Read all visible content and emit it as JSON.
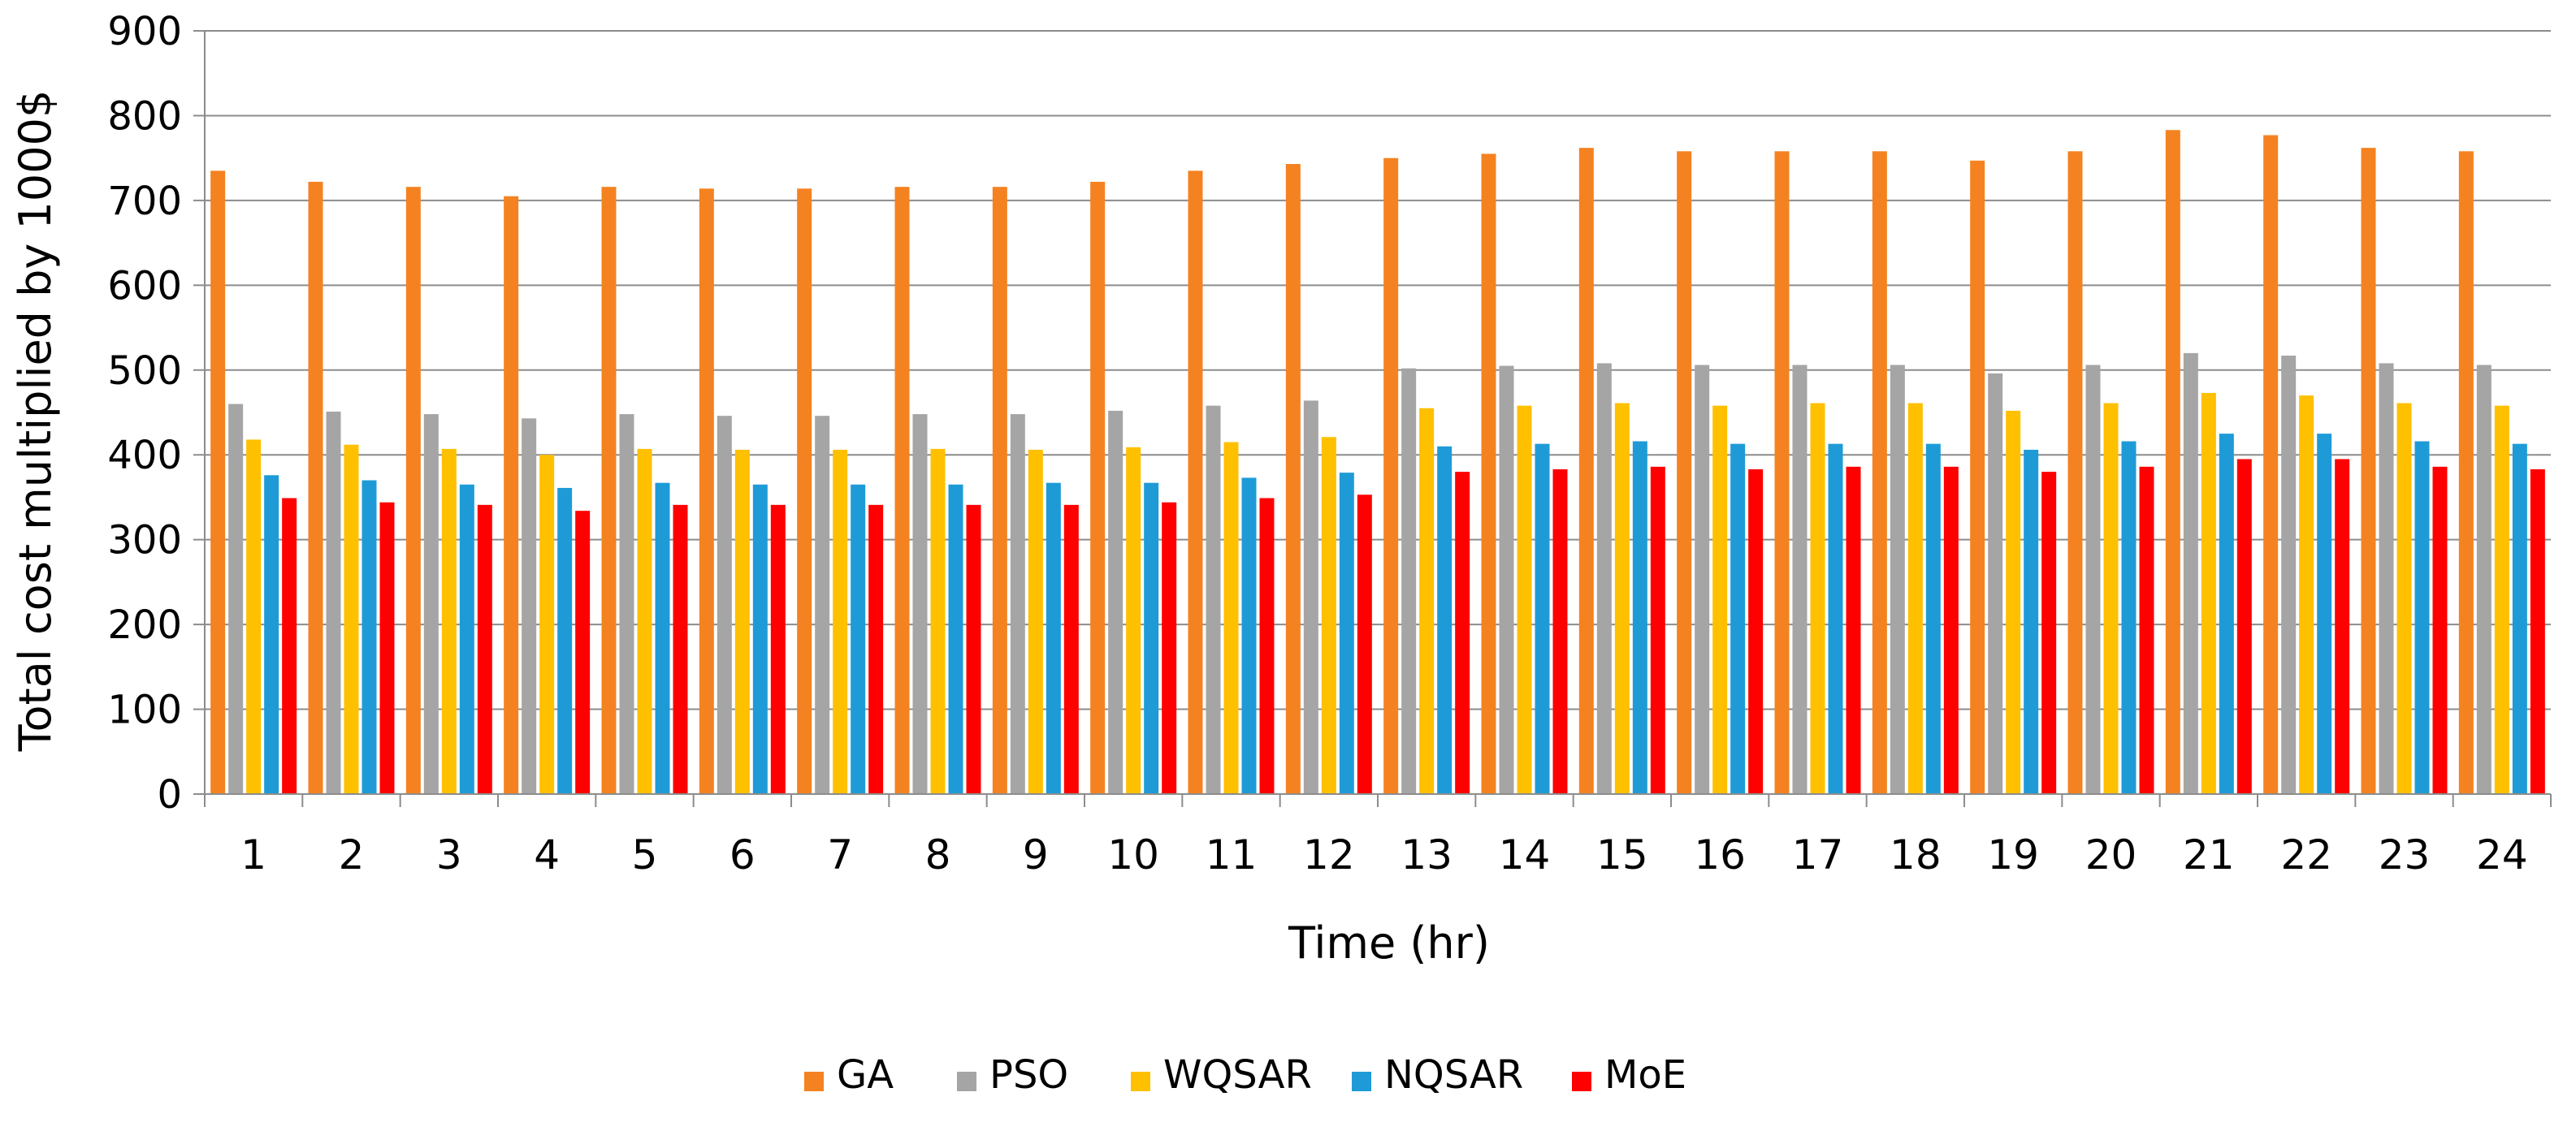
{
  "chart_data": {
    "type": "bar",
    "title": "",
    "xlabel": "Time (hr)",
    "ylabel": "Total cost multiplied by  1000$",
    "ylim": [
      0,
      900
    ],
    "yticks": [
      0,
      100,
      200,
      300,
      400,
      500,
      600,
      700,
      800,
      900
    ],
    "grid": true,
    "legend_position": "bottom-center",
    "categories": [
      "1",
      "2",
      "3",
      "4",
      "5",
      "6",
      "7",
      "8",
      "9",
      "10",
      "11",
      "12",
      "13",
      "14",
      "15",
      "16",
      "17",
      "18",
      "19",
      "20",
      "21",
      "22",
      "23",
      "24"
    ],
    "series": [
      {
        "name": "GA",
        "color": "#F58220",
        "values": [
          735,
          722,
          716,
          705,
          716,
          714,
          714,
          716,
          716,
          722,
          735,
          743,
          750,
          755,
          762,
          758,
          758,
          758,
          747,
          758,
          783,
          777,
          762,
          758
        ]
      },
      {
        "name": "PSO",
        "color": "#A5A5A5",
        "values": [
          460,
          451,
          448,
          443,
          448,
          446,
          446,
          448,
          448,
          452,
          458,
          464,
          502,
          505,
          508,
          506,
          506,
          506,
          496,
          506,
          520,
          517,
          508,
          506
        ]
      },
      {
        "name": "WQSAR",
        "color": "#FFC000",
        "values": [
          418,
          412,
          407,
          400,
          407,
          406,
          406,
          407,
          406,
          409,
          415,
          421,
          455,
          458,
          461,
          458,
          461,
          461,
          452,
          461,
          473,
          470,
          461,
          458
        ]
      },
      {
        "name": "NQSAR",
        "color": "#1E9BD7",
        "values": [
          376,
          370,
          365,
          361,
          367,
          365,
          365,
          365,
          367,
          367,
          373,
          379,
          410,
          413,
          416,
          413,
          413,
          413,
          406,
          416,
          425,
          425,
          416,
          413
        ]
      },
      {
        "name": "MoE",
        "color": "#FF0000",
        "values": [
          349,
          344,
          341,
          334,
          341,
          341,
          341,
          341,
          341,
          344,
          349,
          353,
          380,
          383,
          386,
          383,
          386,
          386,
          380,
          386,
          395,
          395,
          386,
          383
        ]
      }
    ]
  }
}
